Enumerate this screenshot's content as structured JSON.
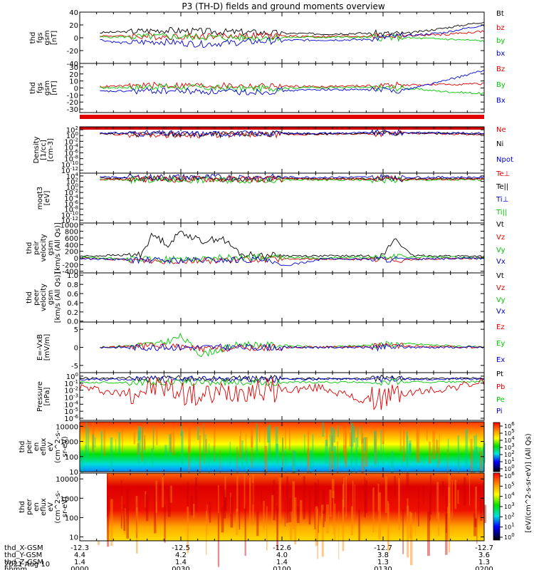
{
  "title": "P3 (TH-D) fields and ground moments overview",
  "date_label": "2021 Aug 10",
  "colors": {
    "black": "#000000",
    "red": "#e00000",
    "green": "#00c800",
    "blue": "#0000d0"
  },
  "colorbar": {
    "label": "[eV/(cm^2-s-sr-eV)] (All Qs)",
    "ticks_top": [
      "10^6",
      "10^5",
      "10^4",
      "10^3",
      "10^2",
      "10^1",
      "10^0"
    ],
    "ticks_bottom": [
      "10^6",
      "10^5",
      "10^4",
      "10^3",
      "10^2",
      "10^1",
      "10^0"
    ]
  },
  "footer": {
    "rows": [
      {
        "label": "thd_X-GSM",
        "values": [
          "-12.3",
          "-12.5",
          "-12.6",
          "-12.7",
          "-12.7"
        ]
      },
      {
        "label": "thd_Y-GSM",
        "values": [
          "4.4",
          "4.2",
          "4.0",
          "3.8",
          "3.6"
        ]
      },
      {
        "label": "thd_Z-GSM",
        "values": [
          "1.4",
          "1.4",
          "1.4",
          "1.3",
          "1.3"
        ]
      },
      {
        "label": "hhmm",
        "values": [
          "0000",
          "0030",
          "0100",
          "0130",
          "0200"
        ]
      }
    ]
  },
  "chart_data": [
    {
      "type": "line",
      "id": "p1",
      "ylabel": [
        "thd",
        "fgs",
        "gsm",
        "[nT]"
      ],
      "ylim": [
        -40,
        40
      ],
      "yticks": [
        "40",
        "20",
        "0",
        "-20",
        "-40"
      ],
      "ytick_values": [
        40,
        20,
        0,
        -20,
        -40
      ],
      "legend": [
        "Bt",
        "bz",
        "by",
        "bx"
      ],
      "legend_colors": [
        "black",
        "red",
        "green",
        "blue"
      ],
      "series": [
        {
          "color": "black",
          "x": [
            0.05,
            0.1,
            0.2,
            0.3,
            0.4,
            0.5,
            0.6,
            0.7,
            0.8,
            0.9,
            1.0
          ],
          "y": [
            8,
            9,
            12,
            10,
            9,
            7,
            6,
            7,
            6,
            15,
            25
          ]
        },
        {
          "color": "red",
          "x": [
            0.05,
            0.2,
            0.4,
            0.6,
            0.8,
            0.9,
            1.0
          ],
          "y": [
            3,
            2,
            3,
            2,
            3,
            5,
            10
          ]
        },
        {
          "color": "green",
          "x": [
            0.05,
            0.2,
            0.4,
            0.6,
            0.8,
            0.9,
            1.0
          ],
          "y": [
            1,
            2,
            0,
            1,
            0,
            -2,
            -5
          ]
        },
        {
          "color": "blue",
          "x": [
            0.05,
            0.1,
            0.2,
            0.3,
            0.5,
            0.7,
            0.9,
            1.0
          ],
          "y": [
            -3,
            -8,
            -6,
            -10,
            -4,
            -3,
            8,
            20
          ]
        }
      ]
    },
    {
      "type": "line",
      "id": "p2",
      "ylabel": [
        "thd",
        "fgs",
        "gsm",
        "[nT]"
      ],
      "ylim": [
        -35,
        35
      ],
      "yticks": [
        "30",
        "20",
        "10",
        "0",
        "-10",
        "-20",
        "-30"
      ],
      "ytick_values": [
        30,
        20,
        10,
        0,
        -10,
        -20,
        -30
      ],
      "legend": [
        "Bz",
        "By",
        "Bx"
      ],
      "legend_colors": [
        "red",
        "green",
        "blue"
      ],
      "series": [
        {
          "color": "red",
          "x": [
            0.05,
            0.2,
            0.4,
            0.6,
            0.8,
            1.0
          ],
          "y": [
            2,
            4,
            3,
            2,
            4,
            6
          ]
        },
        {
          "color": "green",
          "x": [
            0.05,
            0.2,
            0.4,
            0.6,
            0.8,
            0.9,
            1.0
          ],
          "y": [
            0,
            2,
            -1,
            1,
            0,
            -5,
            -8
          ]
        },
        {
          "color": "blue",
          "x": [
            0.05,
            0.2,
            0.4,
            0.6,
            0.8,
            0.9,
            1.0
          ],
          "y": [
            -5,
            -4,
            -6,
            -2,
            -3,
            10,
            25
          ]
        }
      ]
    },
    {
      "type": "line",
      "id": "p3",
      "ylabel": [
        "Density",
        "[1/cc]",
        "[cm-3]"
      ],
      "ylim": [
        -13,
        3
      ],
      "log": true,
      "yticks": [
        "10^2",
        "10^0",
        "10^-2",
        "10^-4",
        "10^-6",
        "10^-8",
        "10^-10",
        "10^-12"
      ],
      "ytick_values": [
        2,
        0,
        -2,
        -4,
        -6,
        -8,
        -10,
        -12
      ],
      "legend": [
        "Ne",
        "Ni",
        "Npot"
      ],
      "legend_colors": [
        "red",
        "black",
        "blue"
      ],
      "series": [
        {
          "color": "red",
          "x": [
            0.05,
            0.3,
            0.6,
            0.8,
            1.0
          ],
          "y": [
            0.5,
            0.2,
            0.4,
            0.8,
            0.4
          ]
        },
        {
          "color": "black",
          "x": [
            0.05,
            0.3,
            0.6,
            0.8,
            1.0
          ],
          "y": [
            0.7,
            0.4,
            0.6,
            0.9,
            0.6
          ]
        },
        {
          "color": "blue",
          "x": [
            0.05,
            0.3,
            0.6,
            0.8,
            1.0
          ],
          "y": [
            0.9,
            0.6,
            0.8,
            1.0,
            0.8
          ]
        }
      ]
    },
    {
      "type": "line",
      "id": "p4",
      "ylabel": [
        "moqt3",
        "[eV]"
      ],
      "ylim": [
        -13,
        5
      ],
      "log": true,
      "yticks": [
        "10^4",
        "10^2",
        "10^0",
        "10^-2",
        "10^-4",
        "10^-6",
        "10^-8",
        "10^-10",
        "10^-12"
      ],
      "ytick_values": [
        4,
        2,
        0,
        -2,
        -4,
        -6,
        -8,
        -10,
        -12
      ],
      "legend": [
        "Te⊥",
        "Te||",
        "Ti⊥",
        "Ti||"
      ],
      "legend_colors": [
        "red",
        "black",
        "blue",
        "green"
      ],
      "series": [
        {
          "color": "black",
          "x": [
            0.05,
            0.5,
            1.0
          ],
          "y": [
            3,
            3,
            3
          ]
        },
        {
          "color": "blue",
          "x": [
            0.05,
            0.5,
            1.0
          ],
          "y": [
            3.5,
            3.5,
            3.5
          ]
        },
        {
          "color": "green",
          "x": [
            0.05,
            0.5,
            1.0
          ],
          "y": [
            2.6,
            2.5,
            2.6
          ]
        },
        {
          "color": "red",
          "x": [
            0.05,
            0.5,
            1.0
          ],
          "y": [
            2.8,
            2.9,
            2.8
          ]
        }
      ]
    },
    {
      "type": "line",
      "id": "p5",
      "ylabel": [
        "thd",
        "peir",
        "velocity",
        "gsm",
        "[km/s (All Qs)]"
      ],
      "ylim": [
        -450,
        1050
      ],
      "yticks": [
        "1000",
        "800",
        "600",
        "400",
        "200",
        "0",
        "-200",
        "-400"
      ],
      "ytick_values": [
        1000,
        800,
        600,
        400,
        200,
        0,
        -200,
        -400
      ],
      "legend": [
        "Vt",
        "Vz",
        "Vy",
        "Vx"
      ],
      "legend_colors": [
        "black",
        "red",
        "green",
        "blue"
      ],
      "series": [
        {
          "color": "black",
          "x": [
            0.0,
            0.15,
            0.18,
            0.22,
            0.25,
            0.3,
            0.35,
            0.4,
            0.45,
            0.55,
            0.75,
            0.78,
            0.82,
            1.0
          ],
          "y": [
            50,
            100,
            700,
            400,
            800,
            500,
            600,
            100,
            80,
            60,
            60,
            600,
            70,
            50
          ]
        },
        {
          "color": "red",
          "x": [
            0.0,
            0.2,
            0.4,
            0.6,
            0.8,
            1.0
          ],
          "y": [
            0,
            -100,
            -50,
            -30,
            -50,
            0
          ]
        },
        {
          "color": "green",
          "x": [
            0.0,
            0.2,
            0.4,
            0.6,
            0.8,
            1.0
          ],
          "y": [
            10,
            -50,
            20,
            0,
            30,
            10
          ]
        },
        {
          "color": "blue",
          "x": [
            0.0,
            0.2,
            0.45,
            0.5,
            0.6,
            0.8,
            1.0
          ],
          "y": [
            -20,
            -80,
            -50,
            -250,
            -30,
            -40,
            -10
          ]
        }
      ]
    },
    {
      "type": "line",
      "id": "p6",
      "ylabel": [
        "thd",
        "peer",
        "velocity",
        "gsm",
        "[km/s (All Qs)]"
      ],
      "ylim": [
        -0.02,
        1.05
      ],
      "yticks": [
        "1.0",
        "0.8",
        "0.6",
        "0.4",
        "0.2",
        "0.0"
      ],
      "ytick_values": [
        1.0,
        0.8,
        0.6,
        0.4,
        0.2,
        0.0
      ],
      "legend": [
        "Vt",
        "Vz",
        "Vy",
        "Vx"
      ],
      "legend_colors": [
        "black",
        "red",
        "green",
        "blue"
      ],
      "series": []
    },
    {
      "type": "line",
      "id": "p7",
      "ylabel": [
        "E=-VxB",
        "[mV/m]"
      ],
      "ylim": [
        -7,
        7
      ],
      "yticks": [
        "5",
        "0",
        "-5"
      ],
      "ytick_values": [
        5,
        0,
        -5
      ],
      "legend": [
        "Ez",
        "Ey",
        "Ex"
      ],
      "legend_colors": [
        "red",
        "green",
        "blue"
      ],
      "series": [
        {
          "color": "green",
          "x": [
            0.05,
            0.2,
            0.25,
            0.3,
            0.4,
            0.6,
            0.8,
            1.0
          ],
          "y": [
            0,
            1,
            3,
            -2,
            1,
            0,
            1,
            0
          ]
        },
        {
          "color": "red",
          "x": [
            0.05,
            0.2,
            0.3,
            0.5,
            0.8,
            1.0
          ],
          "y": [
            0,
            0.5,
            -0.5,
            0,
            0.3,
            0
          ]
        },
        {
          "color": "blue",
          "x": [
            0.05,
            0.5,
            1.0
          ],
          "y": [
            0,
            0,
            0
          ]
        }
      ]
    },
    {
      "type": "line",
      "id": "p8",
      "ylabel": [
        "Pressure",
        "[nPa]"
      ],
      "ylim": [
        -6.3,
        0.5
      ],
      "log": true,
      "yticks": [
        "10^0",
        "10^-1",
        "10^-2",
        "10^-3",
        "10^-4",
        "10^-5",
        "10^-6"
      ],
      "ytick_values": [
        0,
        -1,
        -2,
        -3,
        -4,
        -5,
        -6
      ],
      "legend": [
        "Pt",
        "Pb",
        "Pe",
        "Pi"
      ],
      "legend_colors": [
        "black",
        "red",
        "green",
        "blue"
      ],
      "series": [
        {
          "color": "black",
          "x": [
            0.0,
            0.5,
            1.0
          ],
          "y": [
            -0.3,
            -0.35,
            -0.3
          ]
        },
        {
          "color": "blue",
          "x": [
            0.0,
            0.5,
            1.0
          ],
          "y": [
            -0.45,
            -0.45,
            -0.4
          ]
        },
        {
          "color": "green",
          "x": [
            0.0,
            0.5,
            1.0
          ],
          "y": [
            -0.9,
            -0.9,
            -0.8
          ]
        },
        {
          "color": "red",
          "x": [
            0.0,
            0.1,
            0.2,
            0.3,
            0.4,
            0.5,
            0.6,
            0.7,
            0.8,
            0.9,
            1.0
          ],
          "y": [
            -1.5,
            -2.5,
            -1.5,
            -3,
            -1.8,
            -2,
            -1.6,
            -3.5,
            -2.5,
            -1.8,
            -0.8
          ]
        }
      ]
    },
    {
      "type": "heatmap",
      "id": "p9",
      "ylabel": [
        "thd",
        "peir",
        "en",
        "eflux",
        "eV",
        "(cm^2-s-",
        "sr-eV)"
      ],
      "ylim": [
        1,
        4.3
      ],
      "log": true,
      "yticks": [
        "10000",
        "1000",
        "100",
        "10"
      ],
      "ytick_values": [
        4,
        3,
        2,
        1
      ]
    },
    {
      "type": "heatmap",
      "id": "p10",
      "ylabel": [
        "thd",
        "peer",
        "en",
        "eflux",
        "eV",
        "(cm^2-s-",
        "sr-eV)"
      ],
      "ylim": [
        0.8,
        4.3
      ],
      "log": true,
      "yticks": [
        "10000",
        "1000",
        "100",
        "10"
      ],
      "ytick_values": [
        4,
        3,
        2,
        1
      ]
    }
  ]
}
